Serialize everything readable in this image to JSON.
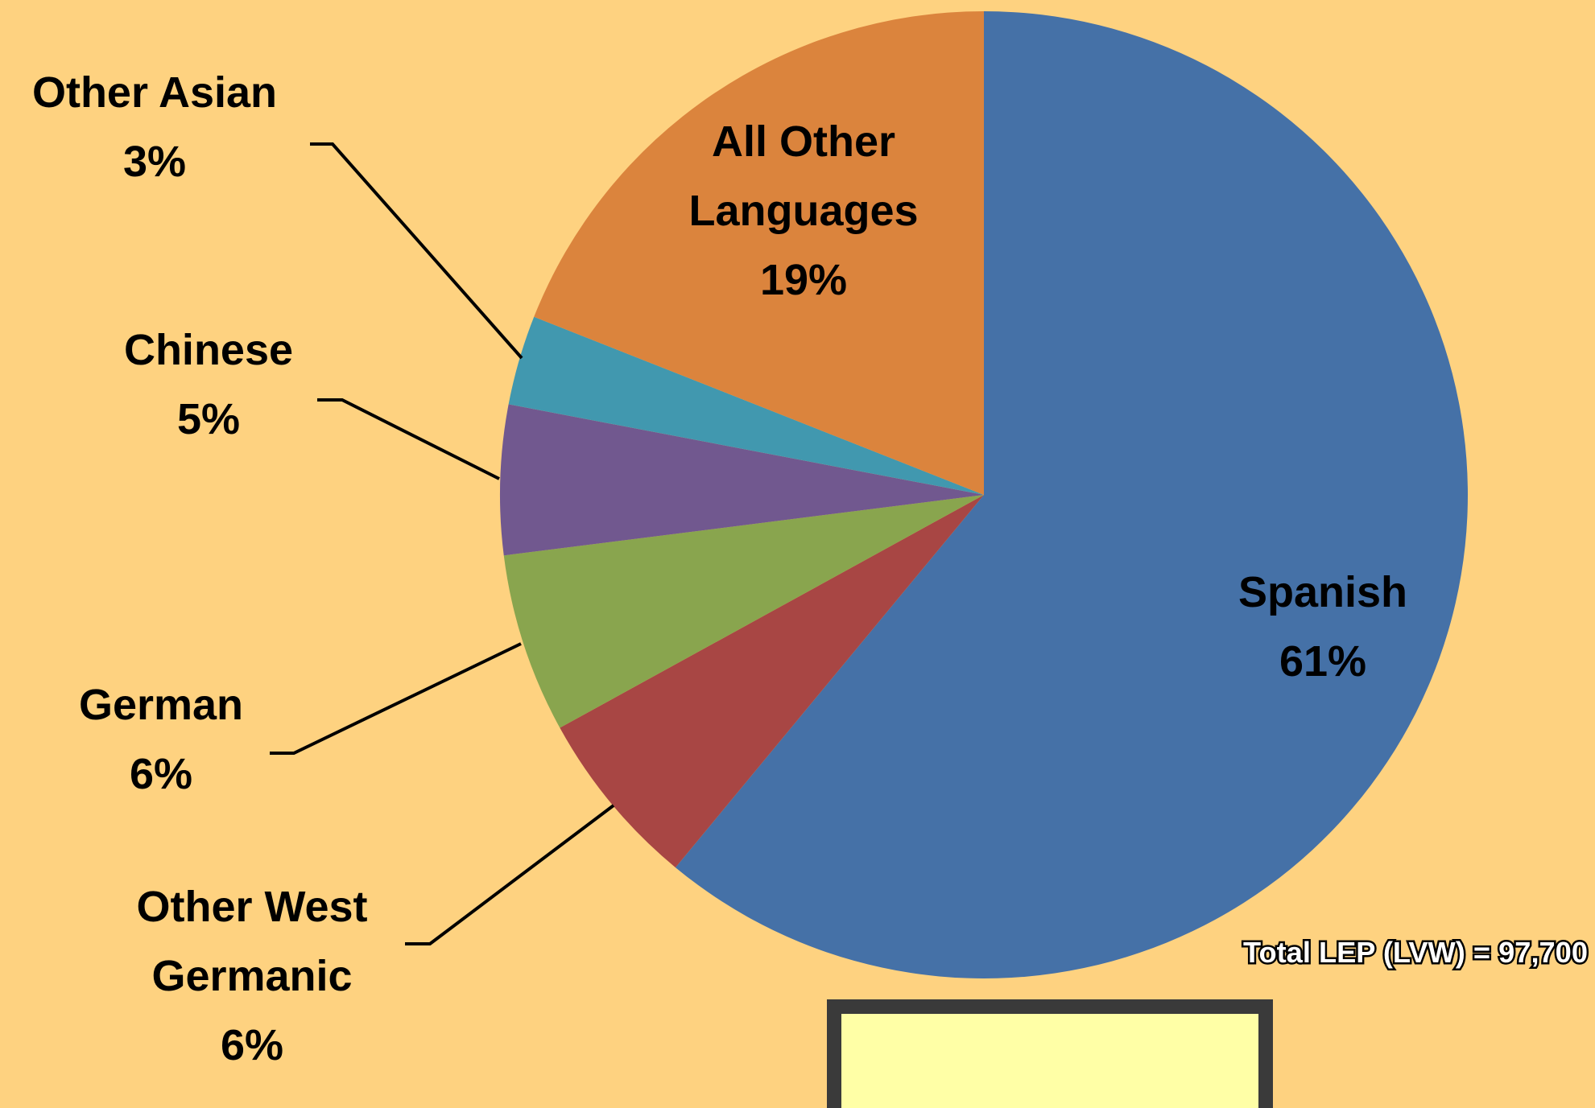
{
  "chart_data": {
    "type": "pie",
    "categories": [
      "Spanish",
      "Other West Germanic",
      "German",
      "Chinese",
      "Other Asian",
      "All Other Languages"
    ],
    "values": [
      61,
      6,
      6,
      5,
      3,
      19
    ],
    "value_labels": [
      "61%",
      "6%",
      "6%",
      "5%",
      "3%",
      "19%"
    ],
    "colors": [
      "#4571a7",
      "#a84644",
      "#89a54e",
      "#71588f",
      "#4198af",
      "#db843d"
    ],
    "annotation": "Total LEP (LVW) = 97,700"
  }
}
